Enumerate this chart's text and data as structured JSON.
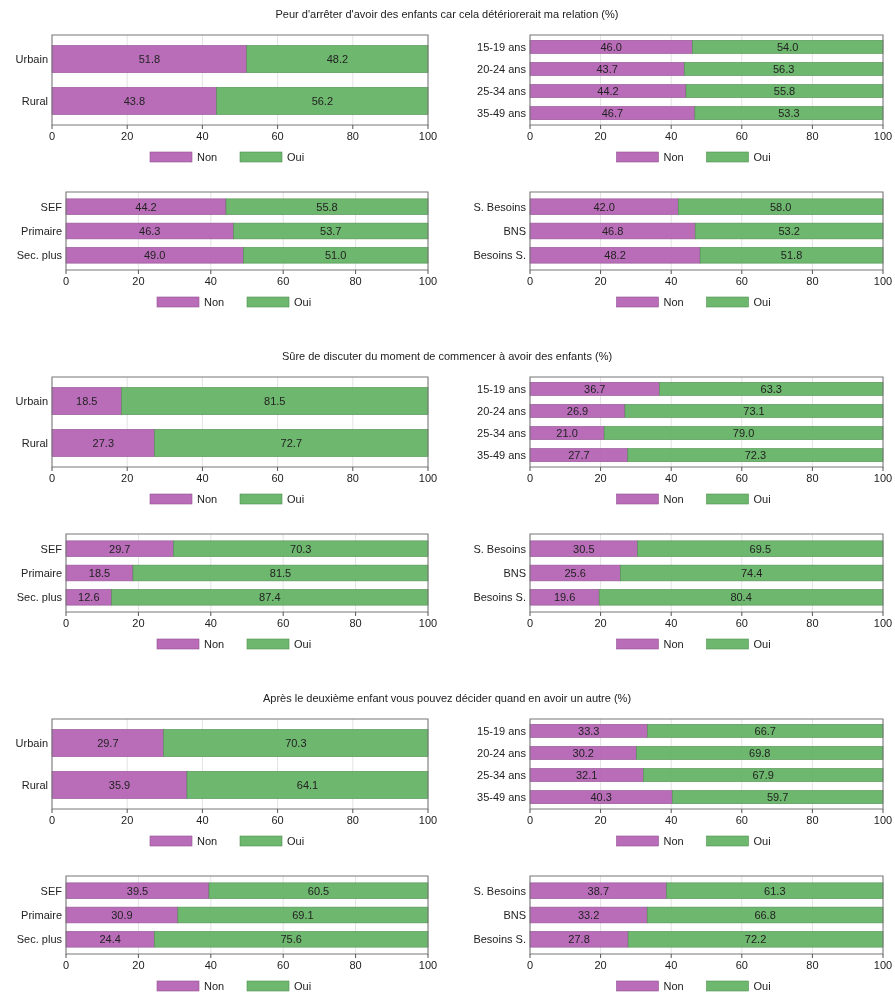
{
  "chart_data": [
    {
      "type": "bar",
      "title": "Peur d'arrêter d'avoir des enfants car cela détériorerait ma relation (%)",
      "orientation": "horizontal",
      "stacked": true,
      "categories": [
        "Urbain",
        "Rural"
      ],
      "series": [
        {
          "name": "Non",
          "color": "#b565b5",
          "values": [
            51.8,
            43.8
          ],
          "value_labels": [
            "51.8",
            "43.8"
          ]
        },
        {
          "name": "Oui",
          "color": "#66b366",
          "values": [
            48.2,
            56.2
          ],
          "value_labels": [
            "48.2",
            "56.2"
          ]
        }
      ],
      "xlim": [
        0,
        100
      ],
      "xticks": [
        0,
        20,
        40,
        60,
        80,
        100
      ],
      "grid": "x",
      "legend": "bottom"
    },
    {
      "type": "bar",
      "orientation": "horizontal",
      "stacked": true,
      "categories": [
        "15-19 ans",
        "20-24 ans",
        "25-34 ans",
        "35-49 ans"
      ],
      "series": [
        {
          "name": "Non",
          "color": "#b565b5",
          "values": [
            46.0,
            43.7,
            44.2,
            46.7
          ],
          "value_labels": [
            "46.0",
            "43.7",
            "44.2",
            "46.7"
          ]
        },
        {
          "name": "Oui",
          "color": "#66b366",
          "values": [
            54.0,
            56.3,
            55.8,
            53.3
          ],
          "value_labels": [
            "54.0",
            "56.3",
            "55.8",
            "53.3"
          ]
        }
      ],
      "xlim": [
        0,
        100
      ],
      "xticks": [
        0,
        20,
        40,
        60,
        80,
        100
      ],
      "grid": "x",
      "legend": "bottom"
    },
    {
      "type": "bar",
      "orientation": "horizontal",
      "stacked": true,
      "categories": [
        "SEF",
        "Primaire",
        "Sec. plus"
      ],
      "series": [
        {
          "name": "Non",
          "color": "#b565b5",
          "values": [
            44.2,
            46.3,
            49.0
          ],
          "value_labels": [
            "44.2",
            "46.3",
            "49.0"
          ]
        },
        {
          "name": "Oui",
          "color": "#66b366",
          "values": [
            55.8,
            53.7,
            51.0
          ],
          "value_labels": [
            "55.8",
            "53.7",
            "51.0"
          ]
        }
      ],
      "xlim": [
        0,
        100
      ],
      "xticks": [
        0,
        20,
        40,
        60,
        80,
        100
      ],
      "grid": "x",
      "legend": "bottom"
    },
    {
      "type": "bar",
      "orientation": "horizontal",
      "stacked": true,
      "categories": [
        "S. Besoins",
        "BNS",
        "Besoins S."
      ],
      "series": [
        {
          "name": "Non",
          "color": "#b565b5",
          "values": [
            42.0,
            46.8,
            48.2
          ],
          "value_labels": [
            "42.0",
            "46.8",
            "48.2"
          ]
        },
        {
          "name": "Oui",
          "color": "#66b366",
          "values": [
            58.0,
            53.2,
            51.8
          ],
          "value_labels": [
            "58.0",
            "53.2",
            "51.8"
          ]
        }
      ],
      "xlim": [
        0,
        100
      ],
      "xticks": [
        0,
        20,
        40,
        60,
        80,
        100
      ],
      "grid": "x",
      "legend": "bottom"
    },
    {
      "type": "bar",
      "title": "Sûre de discuter du moment de commencer à avoir des enfants (%)",
      "orientation": "horizontal",
      "stacked": true,
      "categories": [
        "Urbain",
        "Rural"
      ],
      "series": [
        {
          "name": "Non",
          "color": "#b565b5",
          "values": [
            18.5,
            27.3
          ],
          "value_labels": [
            "18.5",
            "27.3"
          ]
        },
        {
          "name": "Oui",
          "color": "#66b366",
          "values": [
            81.5,
            72.7
          ],
          "value_labels": [
            "81.5",
            "72.7"
          ]
        }
      ],
      "xlim": [
        0,
        100
      ],
      "xticks": [
        0,
        20,
        40,
        60,
        80,
        100
      ],
      "grid": "x",
      "legend": "bottom"
    },
    {
      "type": "bar",
      "orientation": "horizontal",
      "stacked": true,
      "categories": [
        "15-19 ans",
        "20-24 ans",
        "25-34 ans",
        "35-49 ans"
      ],
      "series": [
        {
          "name": "Non",
          "color": "#b565b5",
          "values": [
            36.7,
            26.9,
            21.0,
            27.7
          ],
          "value_labels": [
            "36.7",
            "26.9",
            "21.0",
            "27.7"
          ]
        },
        {
          "name": "Oui",
          "color": "#66b366",
          "values": [
            63.3,
            73.1,
            79.0,
            72.3
          ],
          "value_labels": [
            "63.3",
            "73.1",
            "79.0",
            "72.3"
          ]
        }
      ],
      "xlim": [
        0,
        100
      ],
      "xticks": [
        0,
        20,
        40,
        60,
        80,
        100
      ],
      "grid": "x",
      "legend": "bottom"
    },
    {
      "type": "bar",
      "orientation": "horizontal",
      "stacked": true,
      "categories": [
        "SEF",
        "Primaire",
        "Sec. plus"
      ],
      "series": [
        {
          "name": "Non",
          "color": "#b565b5",
          "values": [
            29.7,
            18.5,
            12.6
          ],
          "value_labels": [
            "29.7",
            "18.5",
            "12.6"
          ]
        },
        {
          "name": "Oui",
          "color": "#66b366",
          "values": [
            70.3,
            81.5,
            87.4
          ],
          "value_labels": [
            "70.3",
            "81.5",
            "87.4"
          ]
        }
      ],
      "xlim": [
        0,
        100
      ],
      "xticks": [
        0,
        20,
        40,
        60,
        80,
        100
      ],
      "grid": "x",
      "legend": "bottom"
    },
    {
      "type": "bar",
      "orientation": "horizontal",
      "stacked": true,
      "categories": [
        "S. Besoins",
        "BNS",
        "Besoins S."
      ],
      "series": [
        {
          "name": "Non",
          "color": "#b565b5",
          "values": [
            30.5,
            25.6,
            19.6
          ],
          "value_labels": [
            "30.5",
            "25.6",
            "19.6"
          ]
        },
        {
          "name": "Oui",
          "color": "#66b366",
          "values": [
            69.5,
            74.4,
            80.4
          ],
          "value_labels": [
            "69.5",
            "74.4",
            "80.4"
          ]
        }
      ],
      "xlim": [
        0,
        100
      ],
      "xticks": [
        0,
        20,
        40,
        60,
        80,
        100
      ],
      "grid": "x",
      "legend": "bottom"
    },
    {
      "type": "bar",
      "title": "Après le deuxième enfant vous pouvez décider quand en avoir un autre (%)",
      "orientation": "horizontal",
      "stacked": true,
      "categories": [
        "Urbain",
        "Rural"
      ],
      "series": [
        {
          "name": "Non",
          "color": "#b565b5",
          "values": [
            29.7,
            35.9
          ],
          "value_labels": [
            "29.7",
            "35.9"
          ]
        },
        {
          "name": "Oui",
          "color": "#66b366",
          "values": [
            70.3,
            64.1
          ],
          "value_labels": [
            "70.3",
            "64.1"
          ]
        }
      ],
      "xlim": [
        0,
        100
      ],
      "xticks": [
        0,
        20,
        40,
        60,
        80,
        100
      ],
      "grid": "x",
      "legend": "bottom"
    },
    {
      "type": "bar",
      "orientation": "horizontal",
      "stacked": true,
      "categories": [
        "15-19 ans",
        "20-24 ans",
        "25-34 ans",
        "35-49 ans"
      ],
      "series": [
        {
          "name": "Non",
          "color": "#b565b5",
          "values": [
            33.3,
            30.2,
            32.1,
            40.3
          ],
          "value_labels": [
            "33.3",
            "30.2",
            "32.1",
            "40.3"
          ]
        },
        {
          "name": "Oui",
          "color": "#66b366",
          "values": [
            66.7,
            69.8,
            67.9,
            59.7
          ],
          "value_labels": [
            "66.7",
            "69.8",
            "67.9",
            "59.7"
          ]
        }
      ],
      "xlim": [
        0,
        100
      ],
      "xticks": [
        0,
        20,
        40,
        60,
        80,
        100
      ],
      "grid": "x",
      "legend": "bottom"
    },
    {
      "type": "bar",
      "orientation": "horizontal",
      "stacked": true,
      "categories": [
        "SEF",
        "Primaire",
        "Sec. plus"
      ],
      "series": [
        {
          "name": "Non",
          "color": "#b565b5",
          "values": [
            39.5,
            30.9,
            24.4
          ],
          "value_labels": [
            "39.5",
            "30.9",
            "24.4"
          ]
        },
        {
          "name": "Oui",
          "color": "#66b366",
          "values": [
            60.5,
            69.1,
            75.6
          ],
          "value_labels": [
            "60.5",
            "69.1",
            "75.6"
          ]
        }
      ],
      "xlim": [
        0,
        100
      ],
      "xticks": [
        0,
        20,
        40,
        60,
        80,
        100
      ],
      "grid": "x",
      "legend": "bottom"
    },
    {
      "type": "bar",
      "orientation": "horizontal",
      "stacked": true,
      "categories": [
        "S. Besoins",
        "BNS",
        "Besoins S."
      ],
      "series": [
        {
          "name": "Non",
          "color": "#b565b5",
          "values": [
            38.7,
            33.2,
            27.8
          ],
          "value_labels": [
            "38.7",
            "33.2",
            "27.8"
          ]
        },
        {
          "name": "Oui",
          "color": "#66b366",
          "values": [
            61.3,
            66.8,
            72.2
          ],
          "value_labels": [
            "61.3",
            "66.8",
            "72.2"
          ]
        }
      ],
      "xlim": [
        0,
        100
      ],
      "xticks": [
        0,
        20,
        40,
        60,
        80,
        100
      ],
      "grid": "x",
      "legend": "bottom"
    }
  ]
}
